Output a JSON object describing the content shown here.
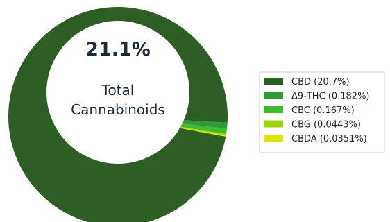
{
  "chart_data": {
    "type": "pie",
    "center": {
      "value": "21.1%",
      "label_line1": "Total",
      "label_line2": "Cannabinoids"
    },
    "slices": [
      {
        "label": "CBD (20.7%)",
        "value": 20.7,
        "color": "#2d5e23"
      },
      {
        "label": "Δ9-THC (0.182%)",
        "value": 0.182,
        "color": "#2f9a37"
      },
      {
        "label": "CBC (0.167%)",
        "value": 0.167,
        "color": "#3dbb2d"
      },
      {
        "label": "CBG (0.0443%)",
        "value": 0.0443,
        "color": "#9fd20a"
      },
      {
        "label": "CBDA (0.0351%)",
        "value": 0.0351,
        "color": "#dce50a"
      }
    ],
    "legend_position": "right"
  }
}
